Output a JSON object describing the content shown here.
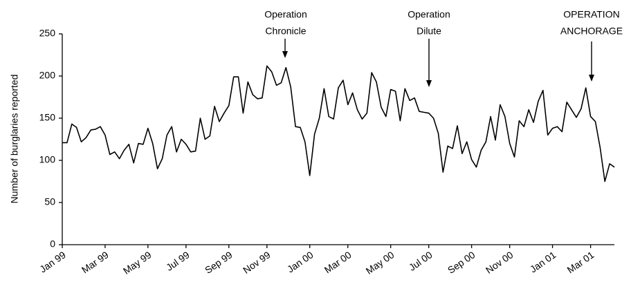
{
  "chart_data": {
    "type": "line",
    "y_label": "Number of burglaries reported",
    "categories": [
      "Jan 99",
      null,
      null,
      null,
      null,
      null,
      null,
      null,
      null,
      "Mar 99",
      null,
      null,
      null,
      null,
      null,
      null,
      null,
      null,
      "May 99",
      null,
      null,
      null,
      null,
      null,
      null,
      null,
      "Jul 99",
      null,
      null,
      null,
      null,
      null,
      null,
      null,
      null,
      "Sep 99",
      null,
      null,
      null,
      null,
      null,
      null,
      null,
      "Nov 99",
      null,
      null,
      null,
      null,
      null,
      null,
      null,
      null,
      "Jan 00",
      null,
      null,
      null,
      null,
      null,
      null,
      null,
      "Mar 00",
      null,
      null,
      null,
      null,
      null,
      null,
      null,
      null,
      "May 00",
      null,
      null,
      null,
      null,
      null,
      null,
      null,
      "Jul 00",
      null,
      null,
      null,
      null,
      null,
      null,
      null,
      null,
      "Sep 00",
      null,
      null,
      null,
      null,
      null,
      null,
      null,
      "Nov 00",
      null,
      null,
      null,
      null,
      null,
      null,
      null,
      null,
      "Jan 01",
      null,
      null,
      null,
      null,
      null,
      null,
      null,
      "Mar 01",
      null,
      null,
      null,
      null,
      null
    ],
    "values": [
      121,
      121,
      143,
      139,
      122,
      127,
      136,
      137,
      140,
      130,
      107,
      110,
      102,
      112,
      119,
      97,
      120,
      119,
      138,
      120,
      90,
      102,
      130,
      140,
      110,
      125,
      119,
      110,
      111,
      150,
      125,
      129,
      164,
      146,
      156,
      165,
      199,
      199,
      156,
      193,
      178,
      173,
      174,
      212,
      205,
      189,
      192,
      210,
      187,
      140,
      139,
      122,
      82,
      131,
      150,
      185,
      152,
      149,
      186,
      195,
      166,
      180,
      160,
      149,
      156,
      204,
      193,
      163,
      152,
      184,
      182,
      147,
      185,
      171,
      174,
      158,
      157,
      156,
      150,
      132,
      86,
      117,
      114,
      141,
      108,
      122,
      101,
      92,
      112,
      122,
      152,
      124,
      166,
      152,
      120,
      104,
      147,
      140,
      160,
      145,
      170,
      183,
      130,
      138,
      140,
      134,
      169,
      160,
      151,
      161,
      186,
      152,
      146,
      115,
      75,
      96,
      92
    ],
    "color": "#000000",
    "ylim": [
      0,
      250
    ],
    "yticks": [
      0,
      50,
      100,
      150,
      200,
      250
    ],
    "grid": false,
    "annotations": [
      {
        "lines": [
          "Operation",
          "Chronicle"
        ]
      },
      {
        "lines": [
          "Operation",
          "Dilute"
        ]
      },
      {
        "lines": [
          "OPERATION",
          "ANCHORAGE"
        ]
      }
    ]
  }
}
